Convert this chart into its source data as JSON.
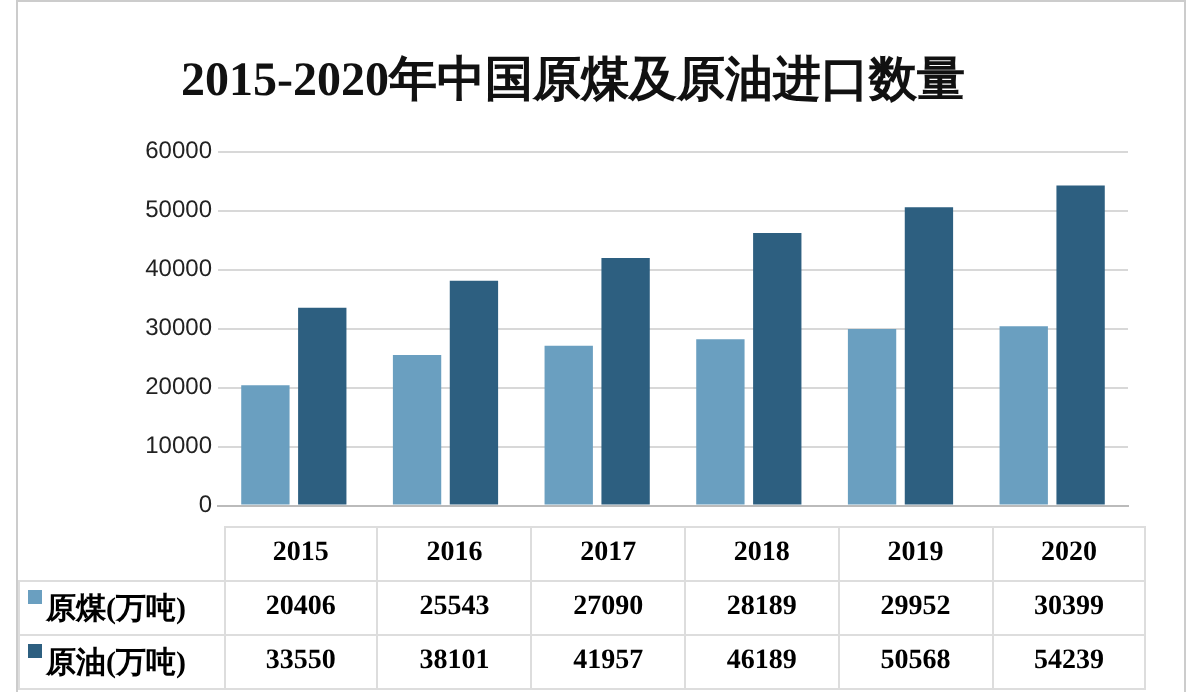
{
  "chart_data": {
    "type": "bar",
    "title": "2015-2020年中国原煤及原油进口数量",
    "categories": [
      "2015",
      "2016",
      "2017",
      "2018",
      "2019",
      "2020"
    ],
    "series": [
      {
        "name": "原煤(万吨)",
        "color": "#6a9fc0",
        "values": [
          20406,
          25543,
          27090,
          28189,
          29952,
          30399
        ]
      },
      {
        "name": "原油(万吨)",
        "color": "#2d5f80",
        "values": [
          33550,
          38101,
          41957,
          46189,
          50568,
          54239
        ]
      }
    ],
    "ylim": [
      0,
      60000
    ],
    "yticks": [
      0,
      10000,
      20000,
      30000,
      40000,
      50000,
      60000
    ],
    "grid": "y",
    "data_labels": true,
    "legend": "bottom left"
  }
}
